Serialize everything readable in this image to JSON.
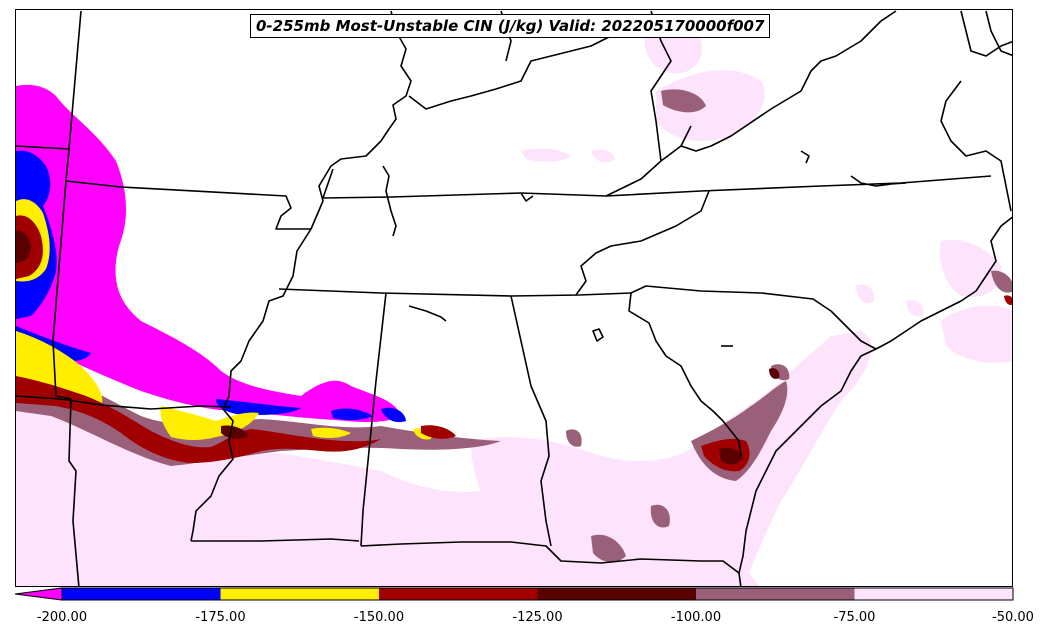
{
  "title": "0-255mb Most-Unstable CIN (J/kg) Valid: 202205170000f007",
  "colorbar": {
    "extend": "min",
    "ticks": [
      "-200.00",
      "-175.00",
      "-150.00",
      "-125.00",
      "-100.00",
      "-75.00",
      "-50.00"
    ],
    "bins": [
      {
        "from": -200,
        "to": -175,
        "color": "#0000ff"
      },
      {
        "from": -175,
        "to": -150,
        "color": "#ffee00"
      },
      {
        "from": -150,
        "to": -125,
        "color": "#a00000"
      },
      {
        "from": -125,
        "to": -100,
        "color": "#5a0000"
      },
      {
        "from": -100,
        "to": -75,
        "color": "#9b6079"
      },
      {
        "from": -75,
        "to": -50,
        "color": "#fde3fb"
      }
    ],
    "under_color": "#ff00ff"
  },
  "map": {
    "region": "Southeastern United States",
    "background": "#ffffff",
    "boundary_color": "#000000"
  }
}
